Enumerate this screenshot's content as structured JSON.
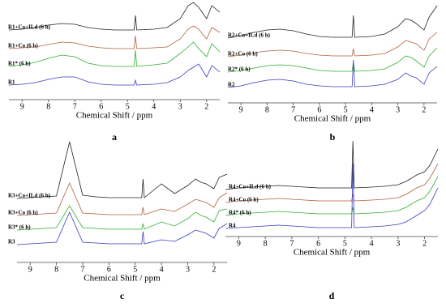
{
  "chart_data": [
    {
      "type": "line",
      "caption": "a",
      "xlabel": "Chemical Shift / ppm",
      "xlim": [
        9.5,
        1.5
      ],
      "xticks": [
        9,
        8,
        7,
        6,
        5,
        4,
        3,
        2
      ],
      "x": [
        9.5,
        9,
        8.5,
        8,
        7.5,
        7,
        6.5,
        6,
        5.5,
        5,
        4.75,
        4.7,
        4.65,
        4,
        3.5,
        3,
        2.7,
        2.5,
        2.3,
        2,
        1.8,
        1.5
      ],
      "series": [
        {
          "name": "R1+Co+ILd (6 h)",
          "color": "#222222",
          "values": [
            0,
            1,
            3,
            6,
            8,
            7,
            3,
            1,
            0,
            0,
            0,
            18,
            0,
            1,
            3,
            14,
            30,
            34,
            28,
            14,
            30,
            22
          ]
        },
        {
          "name": "R1+Co (6 h)",
          "color": "#b0603c",
          "values": [
            0,
            1,
            2,
            5,
            8,
            7,
            3,
            1,
            0,
            0,
            0,
            16,
            0,
            1,
            2,
            12,
            24,
            28,
            24,
            12,
            26,
            20
          ]
        },
        {
          "name": "R1* (6 h)",
          "color": "#2fb02f",
          "values": [
            0,
            2,
            5,
            10,
            14,
            12,
            4,
            1,
            0,
            0,
            0,
            20,
            0,
            2,
            4,
            16,
            24,
            30,
            22,
            12,
            28,
            18
          ]
        },
        {
          "name": "R1",
          "color": "#3a3ac0",
          "values": [
            0,
            1,
            3,
            7,
            10,
            10,
            4,
            1,
            0,
            0,
            0,
            6,
            0,
            1,
            3,
            10,
            18,
            22,
            26,
            10,
            24,
            16
          ]
        }
      ]
    },
    {
      "type": "line",
      "caption": "b",
      "xlabel": "Chemical Shift / ppm",
      "xlim": [
        9.5,
        1.5
      ],
      "xticks": [
        9,
        8,
        7,
        6,
        5,
        4,
        3,
        2
      ],
      "x": [
        9.5,
        9,
        8.5,
        8,
        7.5,
        7,
        6.5,
        6,
        5.5,
        5,
        4.75,
        4.7,
        4.65,
        4,
        3.5,
        3,
        2.7,
        2.5,
        2.3,
        2,
        1.8,
        1.5
      ],
      "series": [
        {
          "name": "R2+Co+ILd (6 h)",
          "color": "#222222",
          "values": [
            0,
            3,
            7,
            10,
            11,
            9,
            5,
            2,
            1,
            1,
            1,
            28,
            1,
            2,
            5,
            14,
            24,
            22,
            18,
            10,
            26,
            40
          ]
        },
        {
          "name": "R2+Co (6 h)",
          "color": "#b0603c",
          "values": [
            0,
            2,
            5,
            7,
            8,
            7,
            4,
            2,
            1,
            1,
            1,
            10,
            1,
            2,
            4,
            12,
            20,
            18,
            16,
            8,
            22,
            30
          ]
        },
        {
          "name": "R2* (6 h)",
          "color": "#2fb02f",
          "values": [
            0,
            2,
            5,
            8,
            9,
            8,
            5,
            2,
            1,
            1,
            1,
            12,
            1,
            2,
            4,
            12,
            20,
            18,
            14,
            6,
            20,
            30
          ]
        },
        {
          "name": "R2",
          "color": "#3a3ac0",
          "values": [
            0,
            2,
            6,
            9,
            10,
            8,
            4,
            2,
            1,
            1,
            1,
            34,
            1,
            2,
            4,
            10,
            18,
            14,
            12,
            4,
            18,
            26
          ]
        }
      ]
    },
    {
      "type": "line",
      "caption": "c",
      "xlabel": "Chemical Shift / ppm",
      "xlim": [
        9.5,
        1.5
      ],
      "xticks": [
        9,
        8,
        7,
        6,
        5,
        4,
        3,
        2
      ],
      "x": [
        9.5,
        9,
        8.5,
        8,
        7.5,
        7,
        6.5,
        6,
        5.5,
        5,
        4.75,
        4.7,
        4.65,
        4,
        3.5,
        3,
        2.7,
        2.5,
        2.3,
        2,
        1.8,
        1.5
      ],
      "series": [
        {
          "name": "R3+Co+ILd (6 h)",
          "color": "#222222",
          "values": [
            0,
            1,
            2,
            3,
            70,
            4,
            2,
            1,
            1,
            1,
            1,
            24,
            1,
            18,
            6,
            16,
            24,
            20,
            18,
            12,
            26,
            30
          ]
        },
        {
          "name": "R3+Co (6 h)",
          "color": "#b0603c",
          "values": [
            0,
            1,
            2,
            3,
            40,
            3,
            2,
            1,
            1,
            1,
            1,
            10,
            1,
            8,
            5,
            14,
            20,
            18,
            16,
            10,
            22,
            28
          ]
        },
        {
          "name": "R3* (6 h)",
          "color": "#2fb02f",
          "values": [
            0,
            1,
            2,
            3,
            30,
            3,
            2,
            1,
            1,
            1,
            1,
            8,
            1,
            10,
            5,
            14,
            22,
            18,
            16,
            10,
            24,
            26
          ]
        },
        {
          "name": "R3",
          "color": "#3a3ac0",
          "values": [
            0,
            1,
            2,
            3,
            40,
            3,
            2,
            1,
            1,
            1,
            1,
            16,
            1,
            6,
            4,
            12,
            18,
            16,
            14,
            8,
            20,
            26
          ]
        }
      ]
    },
    {
      "type": "line",
      "caption": "d",
      "xlabel": "Chemical Shift / ppm",
      "xlim": [
        9.5,
        1.5
      ],
      "xticks": [
        9,
        8,
        7,
        6,
        5,
        4,
        3,
        2
      ],
      "x": [
        9.5,
        9,
        8.5,
        8,
        7.5,
        7,
        6.5,
        6,
        5.5,
        5,
        4.75,
        4.7,
        4.65,
        4,
        3.5,
        3,
        2.7,
        2.5,
        2.3,
        2,
        1.8,
        1.5
      ],
      "series": [
        {
          "name": "R4+Co+ILd (6 h)",
          "color": "#222222",
          "values": [
            0,
            2,
            3,
            4,
            5,
            4,
            3,
            2,
            2,
            2,
            2,
            60,
            2,
            3,
            4,
            6,
            10,
            14,
            18,
            22,
            30,
            50
          ]
        },
        {
          "name": "R4+Co (6 h)",
          "color": "#b0603c",
          "values": [
            0,
            2,
            3,
            4,
            5,
            4,
            3,
            2,
            2,
            2,
            2,
            10,
            2,
            3,
            4,
            6,
            10,
            14,
            18,
            22,
            30,
            48
          ]
        },
        {
          "name": "R4* (6 h)",
          "color": "#2fb02f",
          "values": [
            0,
            2,
            3,
            4,
            5,
            4,
            3,
            2,
            2,
            2,
            2,
            10,
            2,
            3,
            4,
            6,
            10,
            14,
            18,
            22,
            30,
            48
          ]
        },
        {
          "name": "R4",
          "color": "#3a3ac0",
          "values": [
            0,
            1,
            2,
            3,
            4,
            3,
            2,
            1,
            1,
            1,
            1,
            80,
            1,
            2,
            3,
            5,
            8,
            12,
            16,
            22,
            30,
            50
          ]
        }
      ]
    }
  ]
}
